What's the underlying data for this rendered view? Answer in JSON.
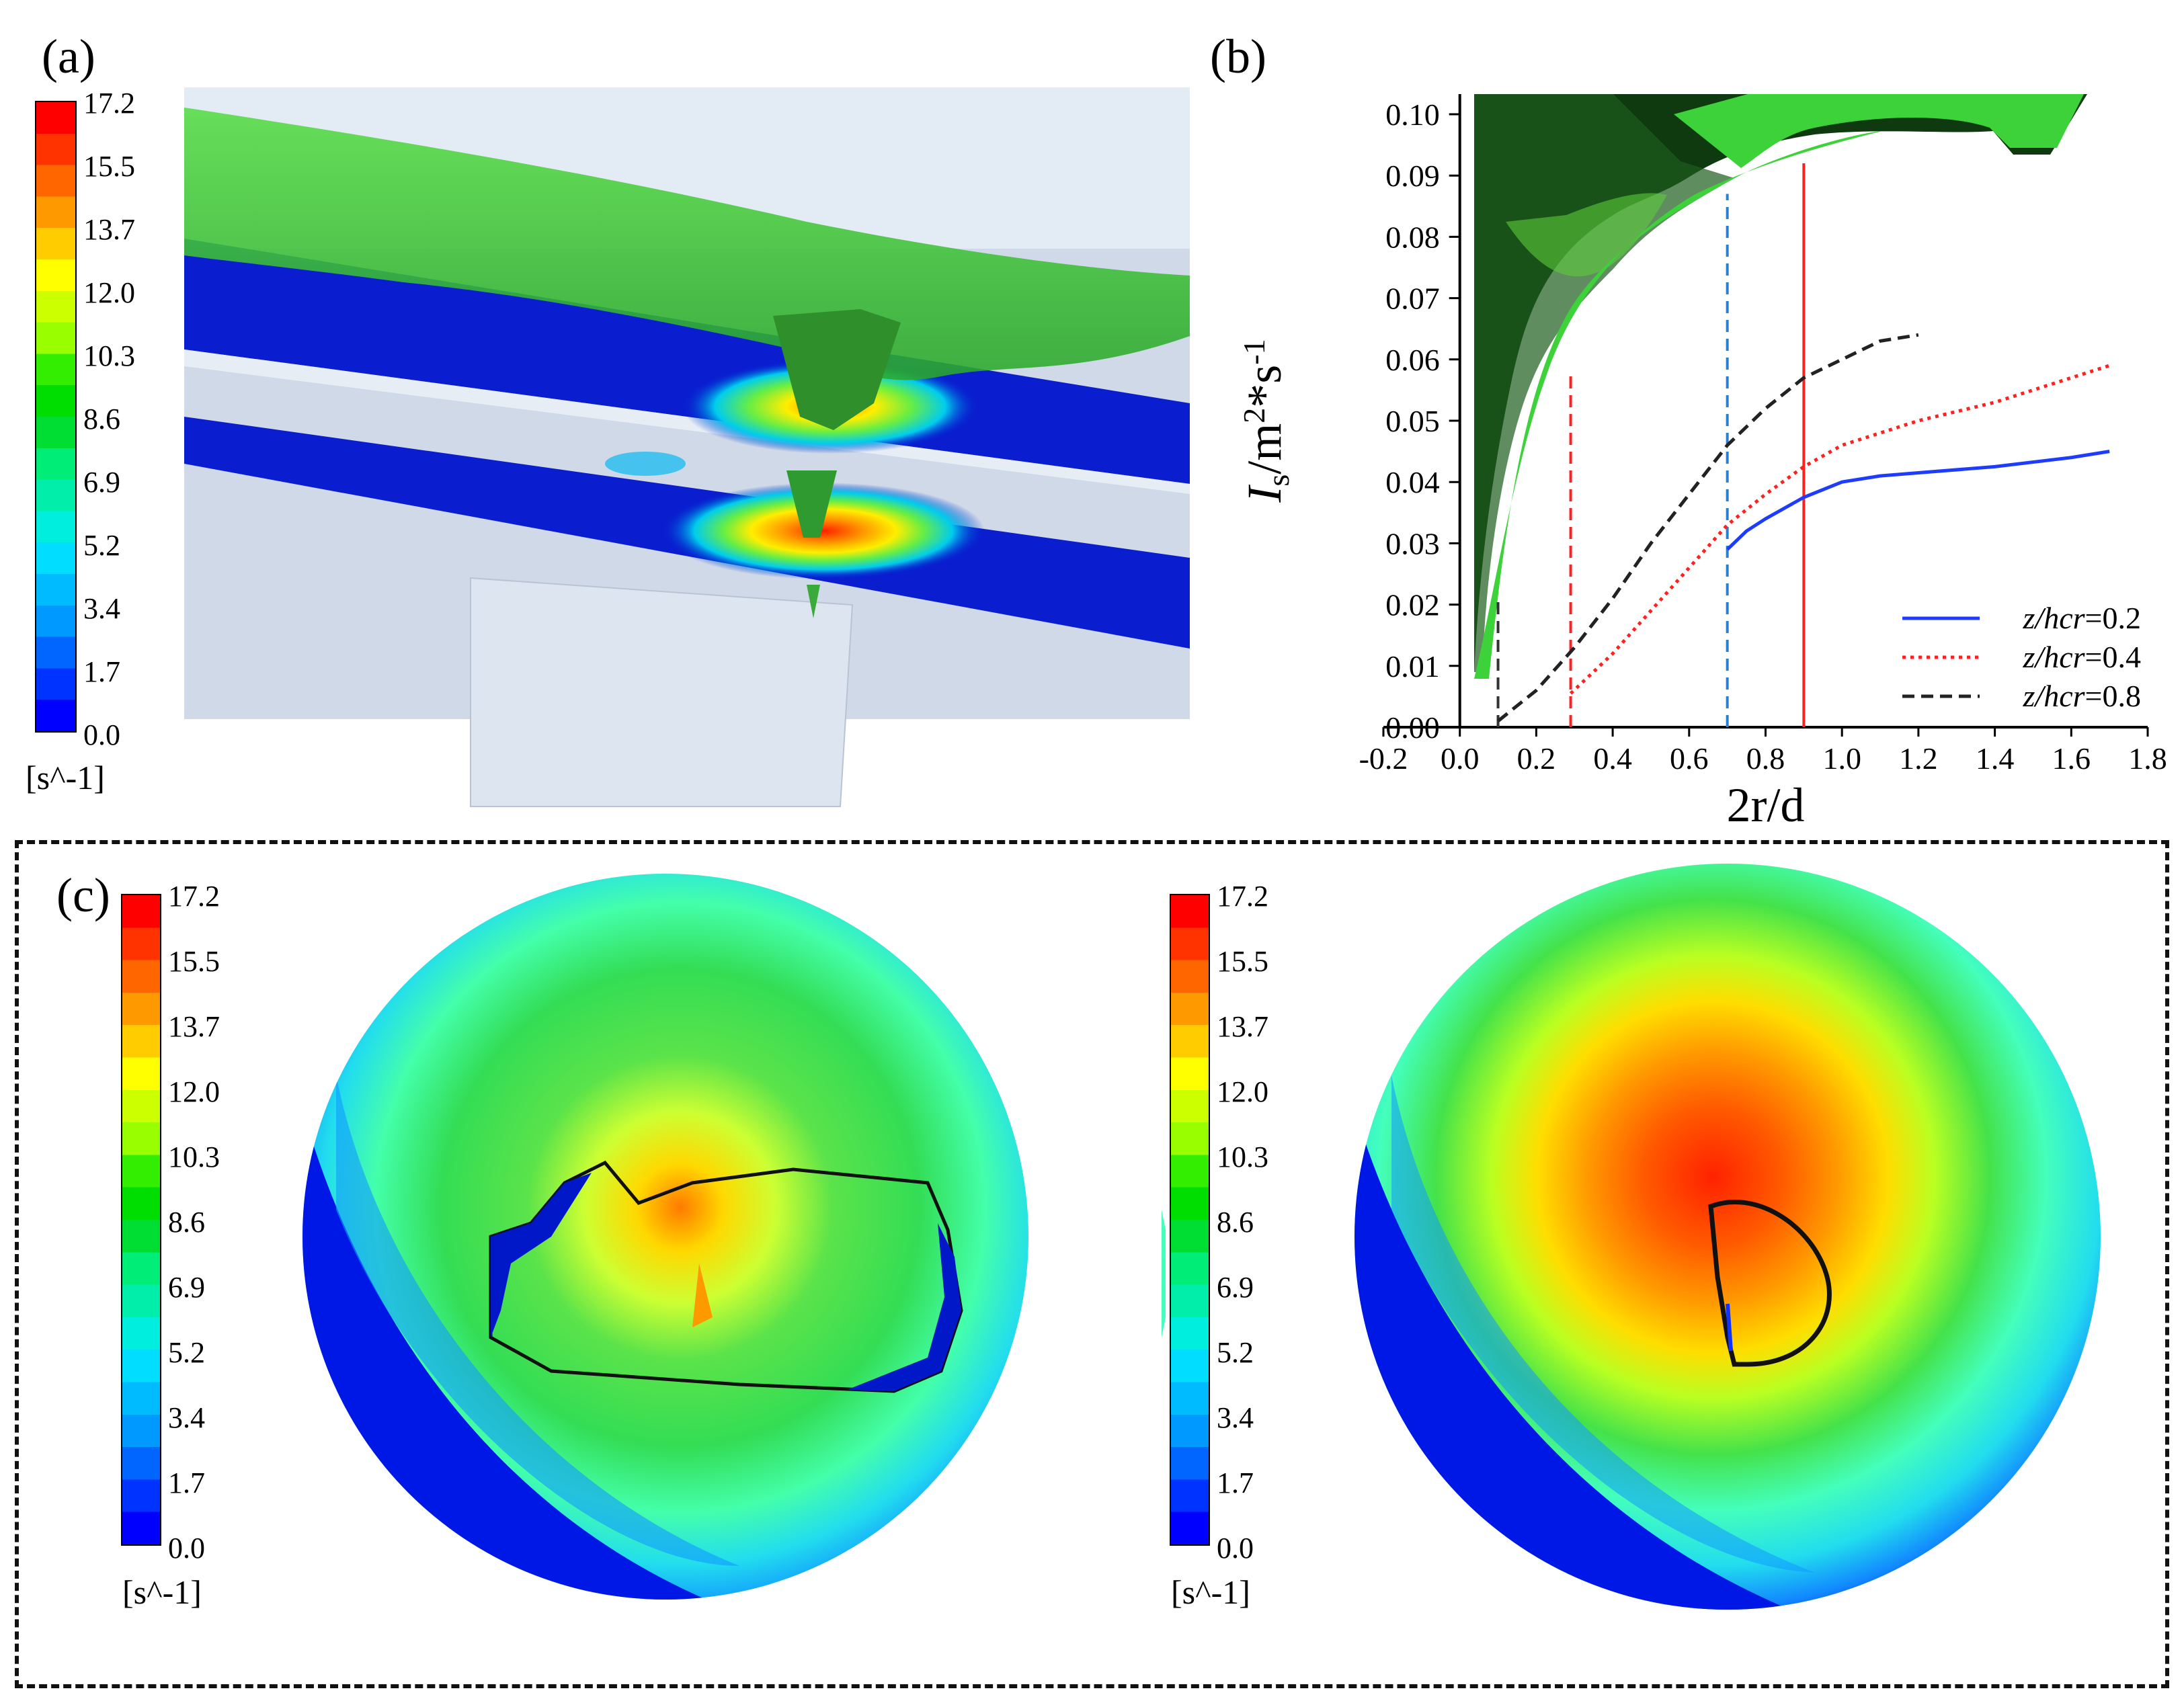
{
  "panels": {
    "a": "(a)",
    "b": "(b)",
    "c": "(c)"
  },
  "colorbar": {
    "ticks": [
      "17.2",
      "15.5",
      "13.7",
      "12.0",
      "10.3",
      "8.6",
      "6.9",
      "5.2",
      "3.4",
      "1.7",
      "0.0"
    ],
    "unit": "[s^-1]",
    "colors": [
      "#ff0000",
      "#ff3300",
      "#ff6600",
      "#ff9900",
      "#ffcc00",
      "#ffff00",
      "#ccff00",
      "#99ff00",
      "#33ee00",
      "#00dd00",
      "#00dd33",
      "#00ee77",
      "#00eeaa",
      "#00eedd",
      "#00ddff",
      "#00bbff",
      "#0099ff",
      "#0066ff",
      "#0033ff",
      "#0000ff"
    ]
  },
  "chart_data": {
    "type": "line",
    "xlabel": "2r/d",
    "ylabel": "I_s/m^2*s^-1",
    "xlim": [
      -0.2,
      1.8
    ],
    "ylim": [
      0.0,
      0.1
    ],
    "x_ticks": [
      "-0.2",
      "0.0",
      "0.2",
      "0.4",
      "0.6",
      "0.8",
      "1.0",
      "1.2",
      "1.4",
      "1.6",
      "1.8"
    ],
    "y_ticks": [
      "0.00",
      "0.01",
      "0.02",
      "0.03",
      "0.04",
      "0.05",
      "0.06",
      "0.07",
      "0.08",
      "0.09",
      "0.10"
    ],
    "legend_position": "bottom-right",
    "series": [
      {
        "name": "z/hcr=0.2",
        "color": "#1e3cff",
        "dash": "solid",
        "x": [
          0.7,
          0.75,
          0.8,
          0.9,
          1.0,
          1.1,
          1.2,
          1.4,
          1.6,
          1.7
        ],
        "y": [
          0.029,
          0.032,
          0.034,
          0.0375,
          0.04,
          0.041,
          0.0415,
          0.0425,
          0.044,
          0.045
        ]
      },
      {
        "name": "z/hcr=0.4",
        "color": "#ff2020",
        "dash": "dotted",
        "x": [
          0.29,
          0.4,
          0.5,
          0.6,
          0.7,
          0.8,
          0.9,
          1.0,
          1.1,
          1.2,
          1.4,
          1.6,
          1.7
        ],
        "y": [
          0.0055,
          0.012,
          0.019,
          0.026,
          0.033,
          0.038,
          0.0425,
          0.046,
          0.048,
          0.05,
          0.053,
          0.057,
          0.059
        ]
      },
      {
        "name": "z/hcr=0.8",
        "color": "#222222",
        "dash": "dashed",
        "x": [
          0.1,
          0.2,
          0.3,
          0.4,
          0.5,
          0.6,
          0.7,
          0.8,
          0.9,
          1.0,
          1.1,
          1.2
        ],
        "y": [
          0.001,
          0.006,
          0.013,
          0.021,
          0.03,
          0.038,
          0.046,
          0.052,
          0.057,
          0.06,
          0.063,
          0.064
        ]
      }
    ],
    "vertical_lines": [
      {
        "x": 0.1,
        "y_top": 0.0205,
        "color": "#333333",
        "dash": "dashed"
      },
      {
        "x": 0.29,
        "y_top": 0.0575,
        "color": "#ff2020",
        "dash": "dashed"
      },
      {
        "x": 0.7,
        "y_top": 0.087,
        "color": "#2a7fd0",
        "dash": "dashed"
      },
      {
        "x": 0.9,
        "y_top": 0.092,
        "color": "#ff2020",
        "dash": "solid"
      }
    ],
    "legend": [
      {
        "label": "z/hcr=0.2",
        "color": "#1e3cff",
        "dash": "solid"
      },
      {
        "label": "z/hcr=0.4",
        "color": "#ff2020",
        "dash": "dotted"
      },
      {
        "label": "z/hcr=0.8",
        "color": "#222222",
        "dash": "dashed"
      }
    ]
  }
}
